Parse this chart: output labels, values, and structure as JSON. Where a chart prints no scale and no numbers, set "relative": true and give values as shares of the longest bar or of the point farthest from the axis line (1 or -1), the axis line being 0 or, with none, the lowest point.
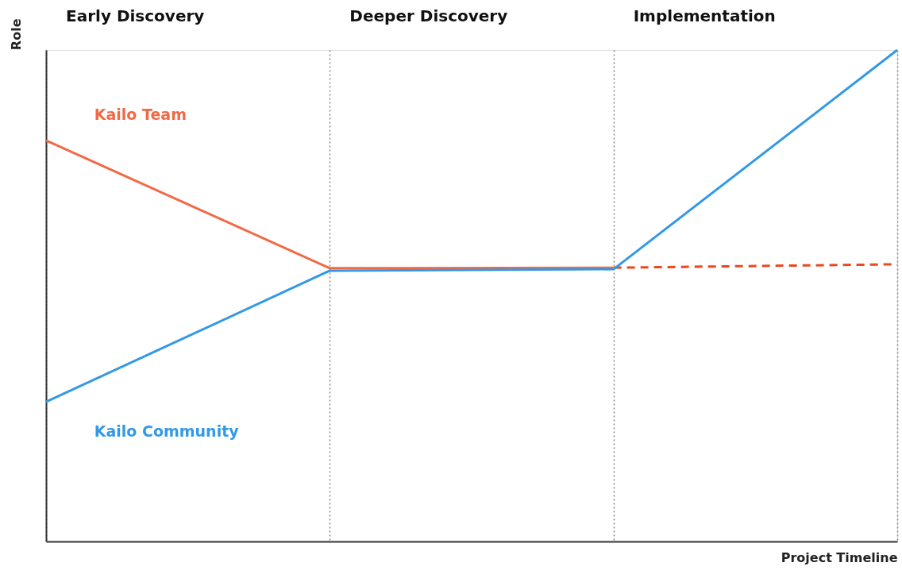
{
  "chart_data": {
    "type": "line",
    "relative": true,
    "xlabel": "Project Timeline",
    "ylabel": "Role",
    "categories": [
      null,
      null,
      null,
      null
    ],
    "grid": "x",
    "annotations": [
      "Early Discovery",
      "Deeper Discovery",
      "Implementation"
    ],
    "series": [
      {
        "name": "Kailo Team",
        "color": "#f26a45",
        "values": [
          0.816,
          0.556,
          0.557,
          null
        ],
        "line_style": "solid"
      },
      {
        "color": "#e8491f",
        "values": [
          null,
          null,
          0.557,
          0.564
        ],
        "line_style": "dashed"
      },
      {
        "name": "Kailo Community",
        "color": "#3399e6",
        "values": [
          0.284,
          0.551,
          0.554,
          1.0
        ],
        "line_style": "solid"
      }
    ]
  }
}
